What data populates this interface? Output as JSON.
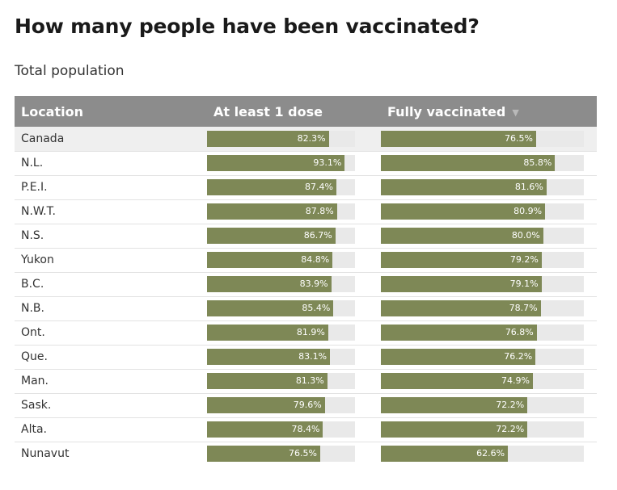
{
  "title": "How many people have been vaccinated?",
  "subtitle": "Total population",
  "colors": {
    "bar": "#7e8856",
    "track": "#e9e9e9",
    "header": "#8c8c8c",
    "highlight_row": "#efefef"
  },
  "table": {
    "headers": {
      "location": "Location",
      "dose1": "At least 1 dose",
      "full": "Fully vaccinated"
    },
    "sort_icon": "sort-descending-icon"
  },
  "chart_data": {
    "type": "table",
    "title": "How many people have been vaccinated?",
    "subtitle": "Total population",
    "columns": [
      "Location",
      "At least 1 dose",
      "Fully vaccinated"
    ],
    "scale": [
      0,
      100
    ],
    "sorted_by": "Fully vaccinated",
    "sort_order": "descending",
    "rows": [
      {
        "location": "Canada",
        "dose1": 82.3,
        "dose1_label": "82.3%",
        "full": 76.5,
        "full_label": "76.5%",
        "highlight": true
      },
      {
        "location": "N.L.",
        "dose1": 93.1,
        "dose1_label": "93.1%",
        "full": 85.8,
        "full_label": "85.8%"
      },
      {
        "location": "P.E.I.",
        "dose1": 87.4,
        "dose1_label": "87.4%",
        "full": 81.6,
        "full_label": "81.6%"
      },
      {
        "location": "N.W.T.",
        "dose1": 87.8,
        "dose1_label": "87.8%",
        "full": 80.9,
        "full_label": "80.9%"
      },
      {
        "location": "N.S.",
        "dose1": 86.7,
        "dose1_label": "86.7%",
        "full": 80.0,
        "full_label": "80.0%"
      },
      {
        "location": "Yukon",
        "dose1": 84.8,
        "dose1_label": "84.8%",
        "full": 79.2,
        "full_label": "79.2%"
      },
      {
        "location": "B.C.",
        "dose1": 83.9,
        "dose1_label": "83.9%",
        "full": 79.1,
        "full_label": "79.1%"
      },
      {
        "location": "N.B.",
        "dose1": 85.4,
        "dose1_label": "85.4%",
        "full": 78.7,
        "full_label": "78.7%"
      },
      {
        "location": "Ont.",
        "dose1": 81.9,
        "dose1_label": "81.9%",
        "full": 76.8,
        "full_label": "76.8%"
      },
      {
        "location": "Que.",
        "dose1": 83.1,
        "dose1_label": "83.1%",
        "full": 76.2,
        "full_label": "76.2%"
      },
      {
        "location": "Man.",
        "dose1": 81.3,
        "dose1_label": "81.3%",
        "full": 74.9,
        "full_label": "74.9%"
      },
      {
        "location": "Sask.",
        "dose1": 79.6,
        "dose1_label": "79.6%",
        "full": 72.2,
        "full_label": "72.2%"
      },
      {
        "location": "Alta.",
        "dose1": 78.4,
        "dose1_label": "78.4%",
        "full": 72.2,
        "full_label": "72.2%"
      },
      {
        "location": "Nunavut",
        "dose1": 76.5,
        "dose1_label": "76.5%",
        "full": 62.6,
        "full_label": "62.6%"
      }
    ]
  }
}
